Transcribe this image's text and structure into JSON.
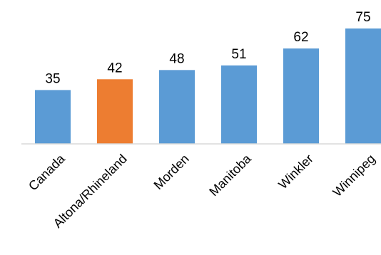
{
  "chart_data": {
    "type": "bar",
    "title": "",
    "xlabel": "",
    "ylabel": "",
    "categories": [
      "Canada",
      "Altona/Rhineland",
      "Morden",
      "Manitoba",
      "Winkler",
      "Winnipeg"
    ],
    "values": [
      35,
      42,
      48,
      51,
      62,
      75
    ],
    "ylim": [
      0,
      75
    ],
    "grid": false,
    "legend": "none",
    "data_labels": [
      "35",
      "42",
      "48",
      "51",
      "62",
      "75"
    ],
    "colors": {
      "default_bar": "#5B9BD5",
      "highlight_bar": "#ED7D31",
      "axis_line": "#D9D9D9"
    },
    "highlight_category": "Altona/Rhineland"
  }
}
